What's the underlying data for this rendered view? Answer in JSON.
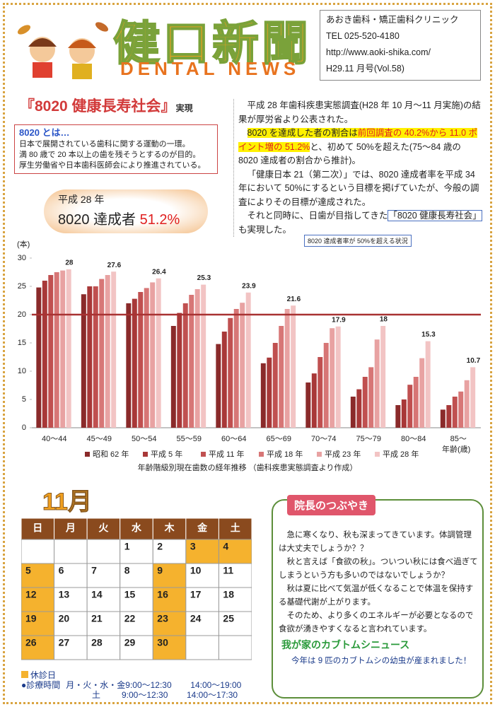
{
  "header": {
    "title": "健口新聞",
    "subtitle": "DENTAL NEWS",
    "clinic": "あおき歯科・矯正歯科クリニック",
    "tel": "TEL 025-520-4180",
    "url": "http://www.aoki-shika.com/",
    "issue": "H29.11 月号(Vol.58)"
  },
  "article": {
    "headline": "『8020 健康長寿社会』",
    "headline_suffix": "実現",
    "box_title": "8020 とは…",
    "box_lines": [
      "日本で展開されている歯科に関する運動の一環。",
      "満 80 歳で 20 本以上の歯を残そうとするのが目的。",
      "厚生労働省や日本歯科医師会により推進されている。"
    ],
    "badge_year": "平成 28 年",
    "badge_label": "8020 達成者",
    "badge_value": "51.2%",
    "paragraphs": [
      [
        {
          "text": "平成 28 年歯科疾患実態調査(H28 年 10 月～11 月実施)の結果が厚労省より公表された。",
          "style": "plain"
        }
      ],
      [
        {
          "text": "8020 を達成した者の割合は",
          "style": "highlight"
        },
        {
          "text": "前回調査の 40.2%から 11.0 ポイント増の 51.2%",
          "style": "red"
        },
        {
          "text": "と、初めて 50%を超えた(75～84 歳の 8020 達成者の割合から推計)。",
          "style": "plain"
        }
      ],
      [
        {
          "text": "「健康日本 21（第二次）」では、8020 達成者率を平成 34 年において 50%にするという目標を掲げていたが、今般の調査によりその目標が達成された。",
          "style": "plain"
        }
      ],
      [
        {
          "text": "それと同時に、日歯が目指してきた",
          "style": "plain"
        },
        {
          "text": "「8020 健康長寿社会」",
          "style": "underline"
        },
        {
          "text": "も実現した。",
          "style": "plain"
        }
      ]
    ],
    "callout": "8020 達成者率が 50%を超える状況"
  },
  "chart_data": {
    "type": "bar",
    "y_label": "(本)",
    "x_label": "年齢(歳)",
    "caption": "年齢階級別現在歯数の経年推移 （歯科疾患実態調査より作成）",
    "categories": [
      "40～44",
      "45～49",
      "50～54",
      "55～59",
      "60～64",
      "65～69",
      "70～74",
      "75～79",
      "80～84",
      "85～"
    ],
    "series": [
      {
        "name": "昭和 62 年",
        "color": "#8a2a2a",
        "values": [
          24.8,
          23.6,
          22.0,
          18.0,
          14.8,
          11.4,
          8.0,
          5.5,
          4.0,
          3.2
        ]
      },
      {
        "name": "平成 5 年",
        "color": "#a83838",
        "values": [
          26.0,
          25.0,
          22.8,
          20.3,
          17.0,
          12.4,
          9.6,
          6.8,
          5.0,
          4.0
        ]
      },
      {
        "name": "平成 11 年",
        "color": "#c05050",
        "values": [
          27.0,
          25.0,
          24.0,
          22.0,
          19.4,
          15.0,
          12.5,
          9.0,
          7.6,
          5.5
        ]
      },
      {
        "name": "平成 18 年",
        "color": "#d77676",
        "values": [
          27.5,
          26.3,
          24.7,
          23.5,
          21.0,
          18.0,
          15.0,
          10.7,
          9.0,
          6.4
        ]
      },
      {
        "name": "平成 23 年",
        "color": "#e8a2a2",
        "values": [
          27.8,
          27.0,
          25.7,
          24.5,
          22.1,
          21.0,
          17.6,
          15.6,
          12.3,
          8.4
        ]
      },
      {
        "name": "平成 28 年",
        "color": "#f2c4c4",
        "values": [
          28,
          27.6,
          26.4,
          25.3,
          23.9,
          21.6,
          17.9,
          18,
          15.3,
          10.7
        ]
      }
    ],
    "labeled_series": 5,
    "reference_line": {
      "value": 20,
      "color": "#a83232"
    },
    "ylim": [
      0,
      30
    ],
    "yticks": [
      0,
      5,
      10,
      15,
      20,
      25,
      30
    ],
    "grid": false
  },
  "calendar": {
    "month": "11月",
    "weekdays": [
      "日",
      "月",
      "火",
      "水",
      "木",
      "金",
      "土"
    ],
    "weeks": [
      [
        null,
        null,
        null,
        {
          "day": 1,
          "closed": false
        },
        {
          "day": 2,
          "closed": false
        },
        {
          "day": 3,
          "closed": true
        },
        {
          "day": 4,
          "closed": true
        }
      ],
      [
        {
          "day": 5,
          "closed": true
        },
        {
          "day": 6,
          "closed": false
        },
        {
          "day": 7,
          "closed": false
        },
        {
          "day": 8,
          "closed": false
        },
        {
          "day": 9,
          "closed": true
        },
        {
          "day": 10,
          "closed": false
        },
        {
          "day": 11,
          "closed": false
        }
      ],
      [
        {
          "day": 12,
          "closed": true
        },
        {
          "day": 13,
          "closed": false
        },
        {
          "day": 14,
          "closed": false
        },
        {
          "day": 15,
          "closed": false
        },
        {
          "day": 16,
          "closed": true
        },
        {
          "day": 17,
          "closed": false
        },
        {
          "day": 18,
          "closed": false
        }
      ],
      [
        {
          "day": 19,
          "closed": true
        },
        {
          "day": 20,
          "closed": false
        },
        {
          "day": 21,
          "closed": false
        },
        {
          "day": 22,
          "closed": false
        },
        {
          "day": 23,
          "closed": true
        },
        {
          "day": 24,
          "closed": false
        },
        {
          "day": 25,
          "closed": false
        }
      ],
      [
        {
          "day": 26,
          "closed": true
        },
        {
          "day": 27,
          "closed": false
        },
        {
          "day": 28,
          "closed": false
        },
        {
          "day": 29,
          "closed": false
        },
        {
          "day": 30,
          "closed": true
        },
        null,
        null
      ]
    ],
    "legend": "休診日",
    "hours_title": "●診療時間",
    "hours": [
      {
        "days": "月・火・水・金",
        "am": "9:00～12:30",
        "pm": "14:00～19:00"
      },
      {
        "days": "土",
        "am": "9:00～12:30",
        "pm": "14:00～17:30"
      }
    ]
  },
  "column": {
    "title": "院長のつぶやき",
    "paragraphs": [
      "急に寒くなり、秋も深まってきています。体調管理は大丈夫でしょうか？？",
      "秋と言えば「食欲の秋」。ついつい秋には食べ過ぎてしまうという方も多いのではないでしょうか？",
      "秋は夏に比べて気温が低くなることで体温を保持する基礎代謝が上がります。",
      "そのため、より多くのエネルギーが必要となるので食欲が湧きやすくなると言われています。"
    ],
    "news_title": "我が家のカブトムシニュース",
    "news_text": "今年は 9 匹のカブトムシの幼虫が産まれました！"
  }
}
